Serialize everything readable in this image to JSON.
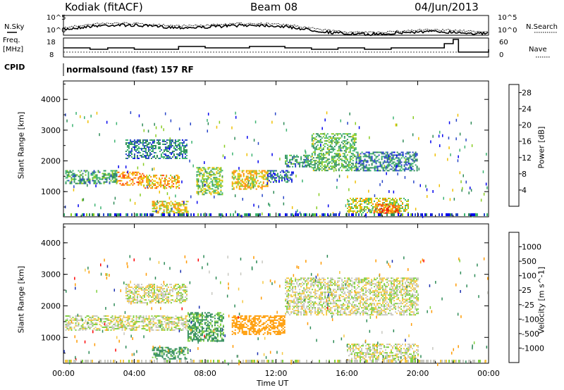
{
  "header": {
    "station": "Kodiak (fitACF)",
    "beam": "Beam 08",
    "date": "04/Jun/2013"
  },
  "top_panels": {
    "nsky_label": "N.Sky",
    "nsearch_label": "N.Search",
    "noise_ticks": [
      "10^5",
      "10^0"
    ],
    "freq_label_1": "Freq.",
    "freq_label_2": "[MHz]",
    "freq_ticks": [
      "18",
      "8"
    ],
    "nave_ticks": [
      "60",
      "0"
    ],
    "nave_label": "Nave",
    "cpid_label": "CPID",
    "cpid_text": "normalsound (fast) 157 RF"
  },
  "colors": {
    "power": [
      "#0000ee",
      "#2846c8",
      "#2e8b57",
      "#3cb371",
      "#88cc22",
      "#f0c000",
      "#ff8c00",
      "#ff4500",
      "#ee0000"
    ],
    "velocity": [
      "#ff0000",
      "#ff6a00",
      "#ff9a00",
      "#f5c842",
      "#c8c8c0",
      "#c8c8c0",
      "#7fd040",
      "#2eaa2e",
      "#2e8b57",
      "#2a4fc8",
      "#1a2fb0"
    ]
  },
  "chart_data": [
    {
      "type": "heatmap",
      "title": "Power",
      "xlabel": "Time UT",
      "ylabel": "Slant Range [km]",
      "x_ticks": [
        "00:00",
        "04:00",
        "08:00",
        "12:00",
        "16:00",
        "20:00",
        "00:00"
      ],
      "y_ticks": [
        "1000",
        "2000",
        "3000",
        "4000"
      ],
      "ylim": [
        180,
        4600
      ],
      "xlim_hours": [
        0,
        24
      ],
      "colorbar_label": "Power [dB]",
      "colorbar_ticks": [
        "4",
        "8",
        "12",
        "16",
        "20",
        "24",
        "28"
      ],
      "colorbar_range": [
        0,
        30
      ],
      "regions": [
        {
          "t0": 0.1,
          "t1": 3.0,
          "r0": 1250,
          "r1": 1700,
          "value": 10
        },
        {
          "t0": 3.0,
          "t1": 4.5,
          "r0": 1200,
          "r1": 1650,
          "value": 22
        },
        {
          "t0": 4.5,
          "t1": 6.5,
          "r0": 1100,
          "r1": 1550,
          "value": 20
        },
        {
          "t0": 3.5,
          "t1": 7.0,
          "r0": 2100,
          "r1": 2700,
          "value": 8
        },
        {
          "t0": 5.0,
          "t1": 7.0,
          "r0": 300,
          "r1": 700,
          "value": 18
        },
        {
          "t0": 7.5,
          "t1": 9.0,
          "r0": 900,
          "r1": 1800,
          "value": 14
        },
        {
          "t0": 9.5,
          "t1": 11.5,
          "r0": 1100,
          "r1": 1700,
          "value": 18
        },
        {
          "t0": 11.5,
          "t1": 13.0,
          "r0": 1300,
          "r1": 1700,
          "value": 6
        },
        {
          "t0": 12.5,
          "t1": 14.0,
          "r0": 1800,
          "r1": 2200,
          "value": 10
        },
        {
          "t0": 14.0,
          "t1": 16.5,
          "r0": 1700,
          "r1": 2900,
          "value": 12
        },
        {
          "t0": 16.5,
          "t1": 20.0,
          "r0": 1700,
          "r1": 2300,
          "value": 8
        },
        {
          "t0": 16.0,
          "t1": 19.5,
          "r0": 300,
          "r1": 800,
          "value": 16
        },
        {
          "t0": 17.5,
          "t1": 19.0,
          "r0": 300,
          "r1": 600,
          "value": 24
        }
      ]
    },
    {
      "type": "heatmap",
      "title": "Velocity",
      "xlabel": "Time UT",
      "ylabel": "Slant Range [km]",
      "x_ticks": [
        "00:00",
        "04:00",
        "08:00",
        "12:00",
        "16:00",
        "20:00",
        "00:00"
      ],
      "y_ticks": [
        "1000",
        "2000",
        "3000",
        "4000"
      ],
      "ylim": [
        180,
        4600
      ],
      "xlim_hours": [
        0,
        24
      ],
      "colorbar_label": "Velocity [m s^-1]",
      "colorbar_ticks": [
        "1000",
        "500",
        "100",
        "25",
        "-25",
        "-100",
        "-500",
        "-1000"
      ],
      "regions": [
        {
          "t0": 0.1,
          "t1": 7.0,
          "r0": 1250,
          "r1": 1700,
          "value": 0
        },
        {
          "t0": 3.5,
          "t1": 7.0,
          "r0": 2100,
          "r1": 2700,
          "value": 0
        },
        {
          "t0": 5.0,
          "t1": 7.0,
          "r0": 300,
          "r1": 700,
          "value": 150
        },
        {
          "t0": 7.0,
          "t1": 9.0,
          "r0": 900,
          "r1": 1800,
          "value": 120
        },
        {
          "t0": 9.5,
          "t1": 12.5,
          "r0": 1100,
          "r1": 1700,
          "value": -200
        },
        {
          "t0": 12.5,
          "t1": 20.0,
          "r0": 1700,
          "r1": 2900,
          "value": 0
        },
        {
          "t0": 16.0,
          "t1": 20.0,
          "r0": 300,
          "r1": 800,
          "value": 0
        }
      ]
    }
  ]
}
